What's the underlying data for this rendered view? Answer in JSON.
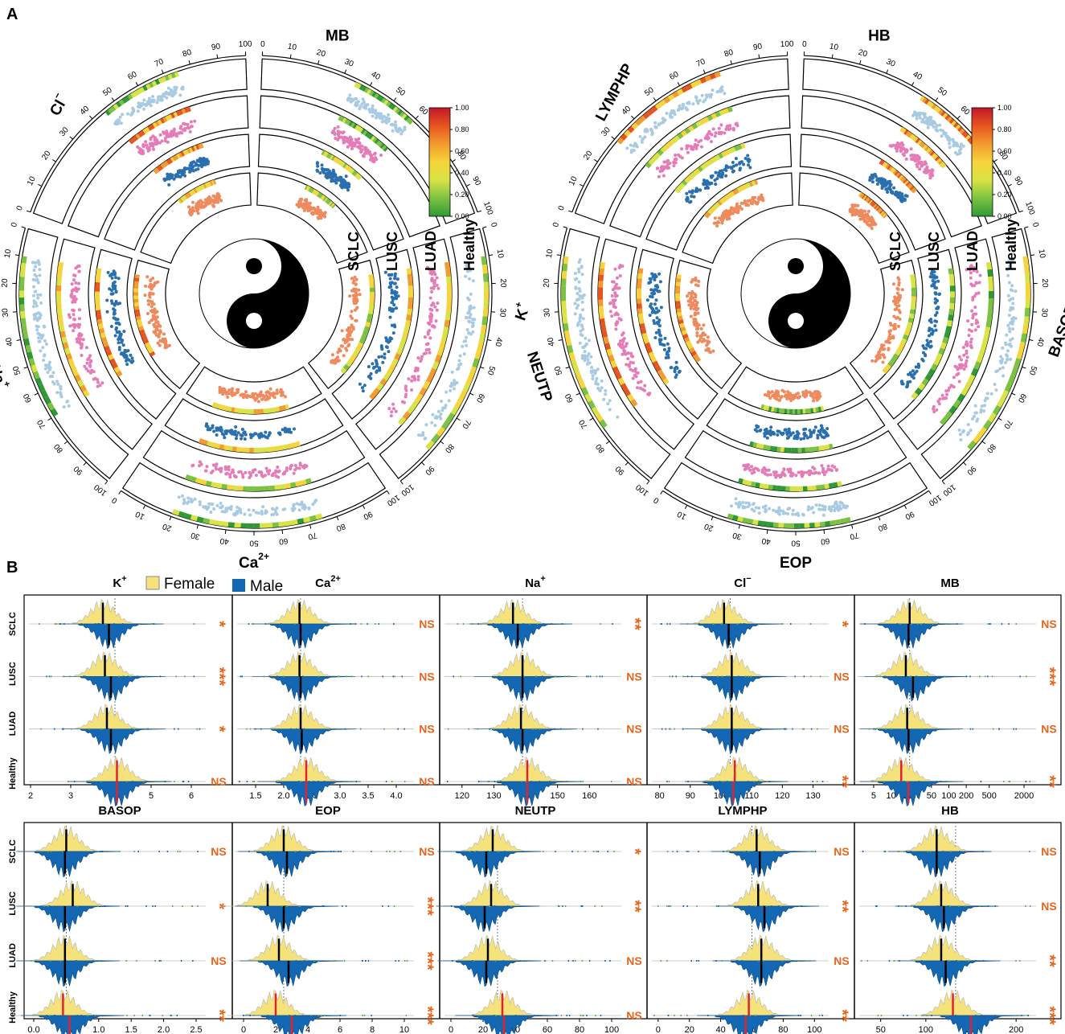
{
  "panel_labels": {
    "a": "A",
    "b": "B"
  },
  "colors": {
    "healthy": "#a9cbe2",
    "luad": "#e57bb7",
    "lusc": "#2a70ae",
    "sclc": "#ee8a5e",
    "female": "#f5e27a",
    "male": "#1467b3",
    "sig": "#e8641b",
    "median_healthy": "#e0242f"
  },
  "circos_ring_labels": [
    "SCLC",
    "LUSC",
    "LUAD",
    "Healthy"
  ],
  "colorbar": {
    "ticks": [
      "1.00",
      "0.80",
      "0.60",
      "0.40",
      "0.20",
      "0.00"
    ]
  },
  "circos_left": {
    "sectors": [
      {
        "name": "MB",
        "ticks": [
          "0",
          "10",
          "20",
          "30",
          "40",
          "50",
          "60",
          "70",
          "80",
          "90",
          "100"
        ]
      },
      {
        "name": "Cl",
        "sup": "−",
        "ticks": [
          "0",
          "10",
          "20",
          "30",
          "40",
          "50",
          "60",
          "70",
          "80",
          "90",
          "100"
        ]
      },
      {
        "name": "Na",
        "sup": "+",
        "ticks": [
          "0",
          "10",
          "20",
          "30",
          "40",
          "50",
          "60",
          "70",
          "80",
          "90",
          "100"
        ]
      },
      {
        "name": "Ca",
        "sup": "2+",
        "ticks": [
          "0",
          "10",
          "20",
          "30",
          "40",
          "50",
          "60",
          "70",
          "80",
          "90",
          "100"
        ]
      },
      {
        "name": "K",
        "sup": "+",
        "ticks": [
          "0",
          "10",
          "20",
          "30",
          "40",
          "50",
          "60",
          "70",
          "80",
          "90",
          "100"
        ]
      }
    ]
  },
  "circos_right": {
    "sectors": [
      {
        "name": "HB",
        "ticks": [
          "0",
          "10",
          "20",
          "30",
          "40",
          "50",
          "60",
          "70",
          "80",
          "90",
          "100"
        ]
      },
      {
        "name": "LYMPHP",
        "ticks": [
          "0",
          "10",
          "20",
          "30",
          "40",
          "50",
          "60",
          "70",
          "80",
          "90",
          "100"
        ]
      },
      {
        "name": "NEUTP",
        "ticks": [
          "0",
          "10",
          "20",
          "30",
          "40",
          "50",
          "60",
          "70",
          "80",
          "90",
          "100"
        ]
      },
      {
        "name": "EOP",
        "ticks": [
          "0",
          "10",
          "20",
          "30",
          "40",
          "50",
          "60",
          "70",
          "80",
          "90",
          "100"
        ]
      },
      {
        "name": "BASOP",
        "ticks": [
          "0",
          "10",
          "20",
          "30",
          "40",
          "50",
          "60",
          "70",
          "80",
          "90",
          "100"
        ]
      }
    ]
  },
  "legend": {
    "female": "Female",
    "male": "Male"
  },
  "chart_data": {
    "type": "split-violin",
    "groups": [
      "SCLC",
      "LUSC",
      "LUAD",
      "Healthy"
    ],
    "panels": [
      {
        "title": "K",
        "sup": "+",
        "ticks": [
          "2",
          "3",
          "4",
          "5",
          "6"
        ],
        "xlim": [
          2,
          6.2
        ],
        "ref": 4.1,
        "median_f": [
          3.8,
          3.85,
          3.9,
          4.15
        ],
        "median_m": [
          3.95,
          4.0,
          4.0,
          4.15
        ],
        "sig": [
          "*",
          "***",
          "*",
          "NS"
        ]
      },
      {
        "title": "Ca",
        "sup": "2+",
        "ticks": [
          "1.5",
          "2.0",
          "2.5",
          "3.0",
          "3.5",
          "4.0"
        ],
        "xlim": [
          1.2,
          4.2
        ],
        "ref": 2.3,
        "median_f": [
          2.28,
          2.28,
          2.3,
          2.4
        ],
        "median_m": [
          2.3,
          2.3,
          2.32,
          2.4
        ],
        "sig": [
          "NS",
          "NS",
          "NS",
          "NS"
        ]
      },
      {
        "title": "Na",
        "sup": "+",
        "ticks": [
          "120",
          "130",
          "140",
          "150",
          "160"
        ],
        "xlim": [
          115,
          168
        ],
        "ref": 139,
        "median_f": [
          136,
          139,
          138.5,
          140.5
        ],
        "median_m": [
          137.5,
          139,
          139,
          140.5
        ],
        "sig": [
          "**",
          "NS",
          "NS",
          "NS"
        ]
      },
      {
        "title": "Cl",
        "sup": "−",
        "ticks": [
          "80",
          "90",
          "100",
          "110",
          "120",
          "130"
        ],
        "xlim": [
          78,
          133
        ],
        "ref": 103,
        "median_f": [
          101,
          103.5,
          103.5,
          104.5
        ],
        "median_m": [
          102.5,
          103.5,
          103.5,
          104
        ],
        "sig": [
          "*",
          "NS",
          "NS",
          "**"
        ]
      },
      {
        "title": "MB",
        "sup": "",
        "ticks": [
          "5",
          "10",
          "20",
          "50",
          "100",
          "200",
          "500",
          "2000"
        ],
        "xlim": [
          0,
          1
        ],
        "ref": 21,
        "median_f": [
          21,
          18,
          19,
          15
        ],
        "median_m": [
          20,
          24,
          20,
          20
        ],
        "sig": [
          "NS",
          "***",
          "NS",
          "**"
        ]
      },
      {
        "title": "BASOP",
        "sup": "",
        "ticks": [
          "0.0",
          "0.5",
          "1.0",
          "1.5",
          "2.0",
          "2.5"
        ],
        "xlim": [
          -0.05,
          2.55
        ],
        "ref": 0.5,
        "median_f": [
          0.5,
          0.6,
          0.48,
          0.45
        ],
        "median_m": [
          0.48,
          0.48,
          0.48,
          0.55
        ],
        "sig": [
          "NS",
          "*",
          "NS",
          "**"
        ]
      },
      {
        "title": "EOP",
        "sup": "",
        "ticks": [
          "0",
          "2",
          "4",
          "6",
          "8",
          "10"
        ],
        "xlim": [
          -0.3,
          10.2
        ],
        "ref": 2.5,
        "median_f": [
          2.5,
          1.5,
          2.2,
          2.0
        ],
        "median_m": [
          2.7,
          2.5,
          2.8,
          3.0
        ],
        "sig": [
          "NS",
          "***",
          "***",
          "***"
        ]
      },
      {
        "title": "NEUTP",
        "sup": "",
        "ticks": [
          "0",
          "20",
          "40",
          "60",
          "80",
          "100"
        ],
        "xlim": [
          -3,
          102
        ],
        "ref": 29,
        "median_f": [
          26,
          25,
          23,
          32
        ],
        "median_m": [
          22,
          21,
          22,
          33
        ],
        "sig": [
          "*",
          "**",
          "NS",
          "NS"
        ]
      },
      {
        "title": "LYMPHP",
        "sup": "",
        "ticks": [
          "0",
          "20",
          "40",
          "60",
          "80",
          "100"
        ],
        "xlim": [
          -3,
          105
        ],
        "ref": 60,
        "median_f": [
          63,
          64,
          66,
          58
        ],
        "median_m": [
          65,
          68,
          66,
          56
        ],
        "sig": [
          "NS",
          "**",
          "NS",
          "**"
        ]
      },
      {
        "title": "HB",
        "sup": "",
        "ticks": [
          "50",
          "100",
          "150",
          "200"
        ],
        "xlim": [
          28,
          215
        ],
        "ref": 133,
        "median_f": [
          112,
          117,
          117,
          130
        ],
        "median_m": [
          112,
          120,
          122,
          150
        ],
        "sig": [
          "NS",
          "NS",
          "**",
          "***"
        ]
      }
    ]
  }
}
